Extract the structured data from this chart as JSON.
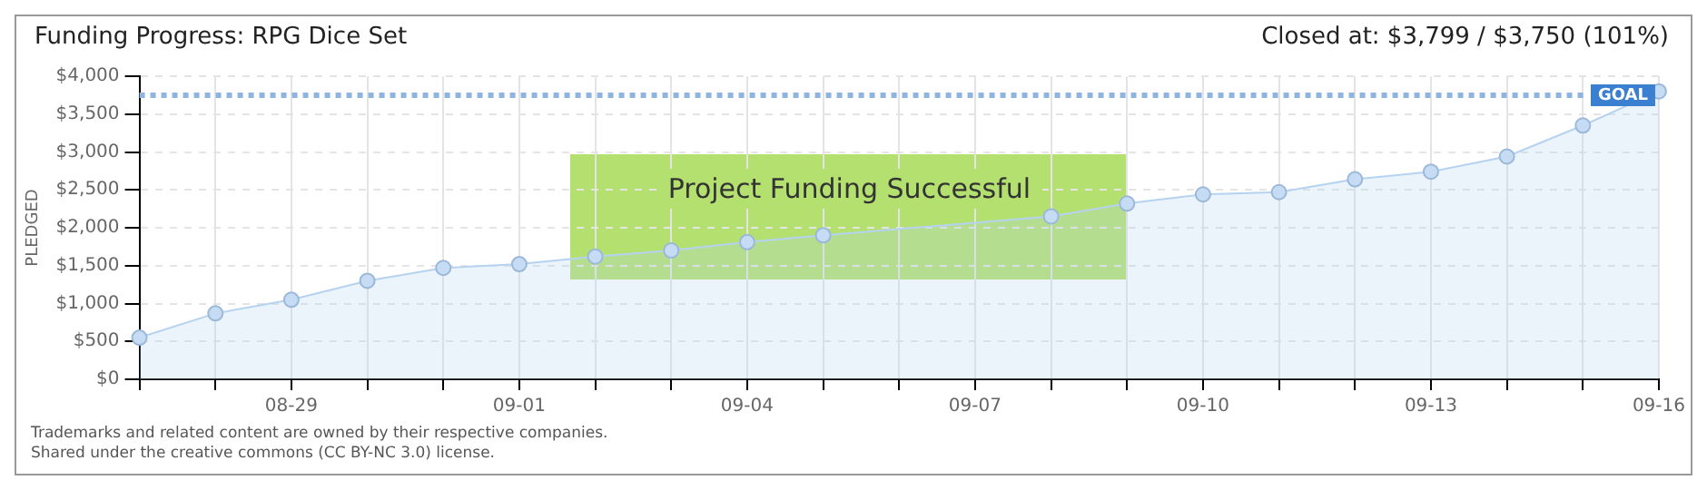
{
  "chart_data": {
    "type": "area",
    "title": "Funding Progress: RPG Dice Set",
    "subtitle": "Closed at: $3,799 / $3,750 (101%)",
    "ylabel": "PLEDGED",
    "categories": [
      null,
      null,
      "08-29",
      null,
      null,
      "09-01",
      null,
      null,
      "09-04",
      null,
      null,
      "09-07",
      null,
      null,
      "09-10",
      null,
      null,
      "09-13",
      null,
      null,
      "09-16"
    ],
    "series": [
      {
        "color": "#b5d3f0",
        "values": [
          550,
          870,
          1050,
          1300,
          1470,
          1520,
          1620,
          1700,
          1810,
          1900,
          null,
          null,
          2150,
          2320,
          2440,
          2470,
          2640,
          2740,
          2940,
          3350,
          3800
        ]
      }
    ],
    "ylim": [
      0,
      4000
    ],
    "yticks": [
      {
        "value": 0,
        "label": "$0"
      },
      {
        "value": 500,
        "label": "$500"
      },
      {
        "value": 1000,
        "label": "$1,000"
      },
      {
        "value": 1500,
        "label": "$1,500"
      },
      {
        "value": 2000,
        "label": "$2,000"
      },
      {
        "value": 2500,
        "label": "$2,500"
      },
      {
        "value": 3000,
        "label": "$3,000"
      },
      {
        "value": 3500,
        "label": "$3,500"
      },
      {
        "value": 4000,
        "label": "$4,000"
      }
    ],
    "grid": true,
    "marker": "circle",
    "legend": false,
    "ref_lines": [
      {
        "axis": "y",
        "value": 3750,
        "label": "GOAL",
        "color": "#8fb4e0",
        "line_style": "dotted"
      }
    ],
    "annotations": [
      "Project Funding Successful",
      "Trademarks and related content are owned by their respective companies.",
      "Shared under the creative commons (CC BY-NC 3.0) license."
    ]
  }
}
